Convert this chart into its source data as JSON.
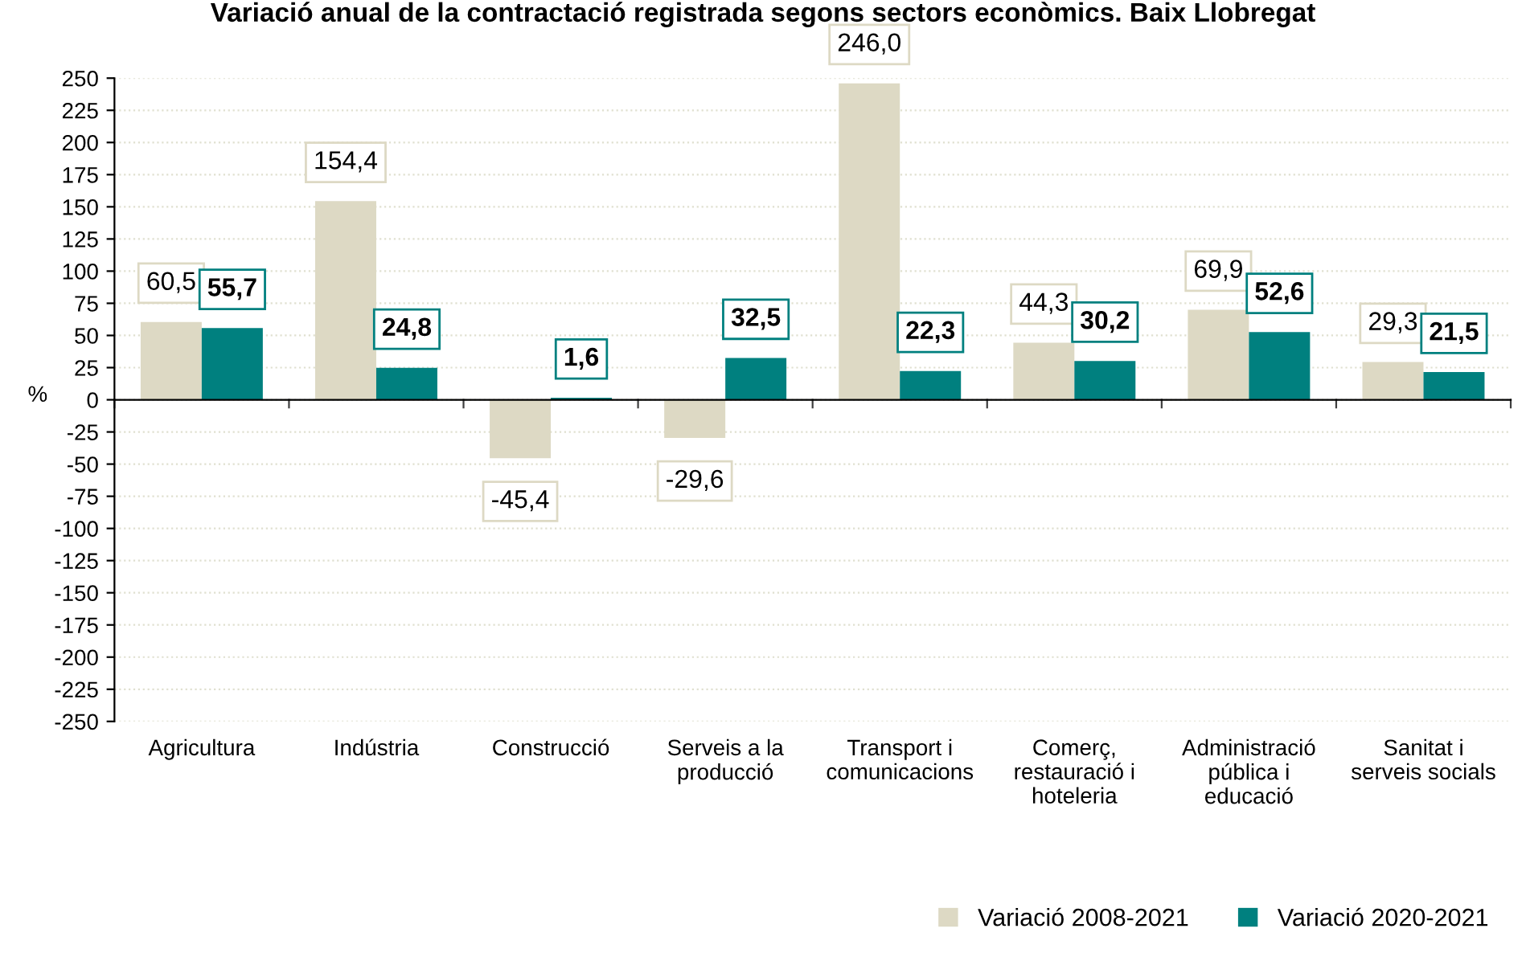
{
  "chart_data": {
    "type": "bar",
    "title": "Variació anual de la contractació registrada segons sectors econòmics. Baix Llobregat",
    "ylabel": "%",
    "categories": [
      "Agricultura",
      "Indústria",
      "Construcció",
      "Serveis a la\nproducció",
      "Transport i\ncomunicacions",
      "Comerç,\nrestauració i\nhoteleria",
      "Administració\npública i\neducació",
      "Sanitat i\nserveis socials"
    ],
    "series": [
      {
        "name": "Variació 2008-2021",
        "color": "#ddd9c4",
        "values": [
          60.5,
          154.4,
          -45.4,
          -29.6,
          246.0,
          44.3,
          69.9,
          29.3
        ],
        "value_labels": [
          "60,5",
          "154,4",
          "-45,4",
          "-29,6",
          "246,0",
          "44,3",
          "69,9",
          "29,3"
        ]
      },
      {
        "name": "Variació 2020-2021",
        "color": "#00807f",
        "values": [
          55.7,
          24.8,
          1.6,
          32.5,
          22.3,
          30.2,
          52.6,
          21.5
        ],
        "value_labels": [
          "55,7",
          "24,8",
          "1,6",
          "32,5",
          "22,3",
          "30,2",
          "52,6",
          "21,5"
        ]
      }
    ],
    "ylim": [
      -250,
      250
    ],
    "yticks": [
      -250,
      -225,
      -200,
      -175,
      -150,
      -125,
      -100,
      -75,
      -50,
      -25,
      0,
      25,
      50,
      75,
      100,
      125,
      150,
      175,
      200,
      225,
      250
    ],
    "grid": "y",
    "legend": "bottom right"
  }
}
